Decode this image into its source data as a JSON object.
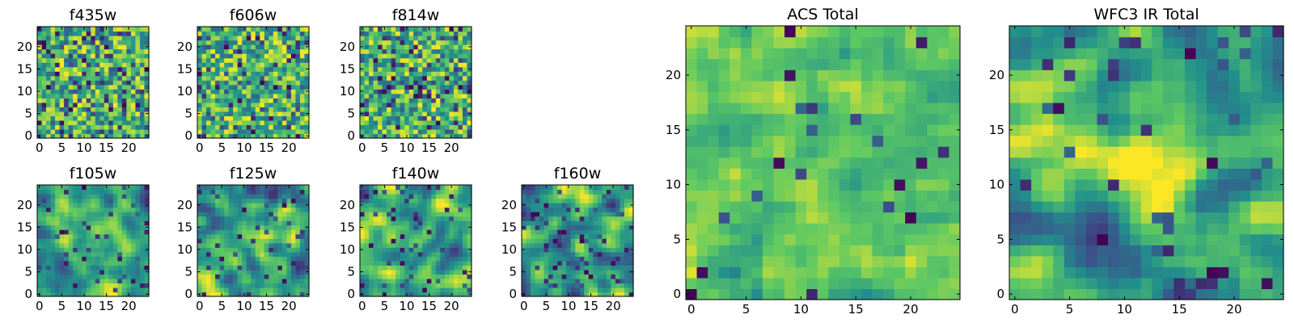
{
  "colormap": [
    "#440154",
    "#3b528b",
    "#21918c",
    "#5ec962",
    "#fde725"
  ],
  "chart_data": [
    {
      "type": "heatmap",
      "title": "f435w",
      "grid_size": 25,
      "xticks": [
        "0",
        "5",
        "10",
        "15",
        "20"
      ],
      "yticks": [
        "0",
        "5",
        "10",
        "15",
        "20"
      ],
      "xlim": [
        -0.5,
        24.5
      ],
      "ylim": [
        -0.5,
        24.5
      ],
      "value_range": [
        0,
        1
      ],
      "pattern": "fine",
      "seed": 11,
      "noise_level": 0.16,
      "hotspots": []
    },
    {
      "type": "heatmap",
      "title": "f606w",
      "grid_size": 25,
      "xticks": [
        "0",
        "5",
        "10",
        "15",
        "20"
      ],
      "yticks": [
        "0",
        "5",
        "10",
        "15",
        "20"
      ],
      "xlim": [
        -0.5,
        24.5
      ],
      "ylim": [
        -0.5,
        24.5
      ],
      "value_range": [
        0,
        1
      ],
      "pattern": "fine",
      "seed": 23,
      "noise_level": 0.12,
      "hotspots": []
    },
    {
      "type": "heatmap",
      "title": "f814w",
      "grid_size": 25,
      "xticks": [
        "0",
        "5",
        "10",
        "15",
        "20"
      ],
      "yticks": [
        "0",
        "5",
        "10",
        "15",
        "20"
      ],
      "xlim": [
        -0.5,
        24.5
      ],
      "ylim": [
        -0.5,
        24.5
      ],
      "value_range": [
        0,
        1
      ],
      "pattern": "fine",
      "seed": 37,
      "noise_level": 0.16,
      "hotspots": []
    },
    {
      "type": "heatmap",
      "title": "f105w",
      "grid_size": 25,
      "xticks": [
        "0",
        "5",
        "10",
        "15",
        "20"
      ],
      "yticks": [
        "0",
        "5",
        "10",
        "15",
        "20"
      ],
      "xlim": [
        -0.5,
        24.5
      ],
      "ylim": [
        -0.5,
        24.5
      ],
      "value_range": [
        0,
        1
      ],
      "pattern": "smooth",
      "seed": 41,
      "noise_level": 0.06,
      "hotspots": [
        [
          12,
          13,
          0.22
        ]
      ]
    },
    {
      "type": "heatmap",
      "title": "f125w",
      "grid_size": 25,
      "xticks": [
        "0",
        "5",
        "10",
        "15",
        "20"
      ],
      "yticks": [
        "0",
        "5",
        "10",
        "15",
        "20"
      ],
      "xlim": [
        -0.5,
        24.5
      ],
      "ylim": [
        -0.5,
        24.5
      ],
      "value_range": [
        0,
        1
      ],
      "pattern": "smooth",
      "seed": 53,
      "noise_level": 0.06,
      "hotspots": [
        [
          13,
          14,
          0.25
        ]
      ]
    },
    {
      "type": "heatmap",
      "title": "f140w",
      "grid_size": 25,
      "xticks": [
        "0",
        "5",
        "10",
        "15",
        "20"
      ],
      "yticks": [
        "0",
        "5",
        "10",
        "15",
        "20"
      ],
      "xlim": [
        -0.5,
        24.5
      ],
      "ylim": [
        -0.5,
        24.5
      ],
      "value_range": [
        0,
        1
      ],
      "pattern": "smooth",
      "seed": 67,
      "noise_level": 0.08,
      "hotspots": [
        [
          12,
          12,
          0.18
        ]
      ]
    },
    {
      "type": "heatmap",
      "title": "f160w",
      "grid_size": 25,
      "xticks": [
        "0",
        "5",
        "10",
        "15",
        "20"
      ],
      "yticks": [
        "0",
        "5",
        "10",
        "15",
        "20"
      ],
      "xlim": [
        -0.5,
        24.5
      ],
      "ylim": [
        -0.5,
        24.5
      ],
      "value_range": [
        0,
        1
      ],
      "pattern": "smooth",
      "seed": 79,
      "noise_level": 0.1,
      "hotspots": [
        [
          12,
          12,
          0.2
        ]
      ]
    },
    {
      "type": "heatmap",
      "title": "ACS Total",
      "grid_size": 25,
      "xticks": [
        "0",
        "5",
        "10",
        "15",
        "20"
      ],
      "yticks": [
        "0",
        "5",
        "10",
        "15",
        "20"
      ],
      "xlim": [
        -0.5,
        24.5
      ],
      "ylim": [
        -0.5,
        24.5
      ],
      "value_range": [
        0,
        1
      ],
      "pattern": "acs",
      "seed": 97,
      "noise_level": 0.03,
      "hotspots": []
    },
    {
      "type": "heatmap",
      "title": "WFC3 IR Total",
      "grid_size": 25,
      "xticks": [
        "0",
        "5",
        "10",
        "15",
        "20"
      ],
      "yticks": [
        "0",
        "5",
        "10",
        "15",
        "20"
      ],
      "xlim": [
        -0.5,
        24.5
      ],
      "ylim": [
        -0.5,
        24.5
      ],
      "value_range": [
        0,
        1
      ],
      "pattern": "smooth",
      "seed": 113,
      "noise_level": 0.05,
      "hotspots": [
        [
          12,
          12,
          0.35
        ],
        [
          13,
          11,
          0.25
        ]
      ]
    }
  ]
}
